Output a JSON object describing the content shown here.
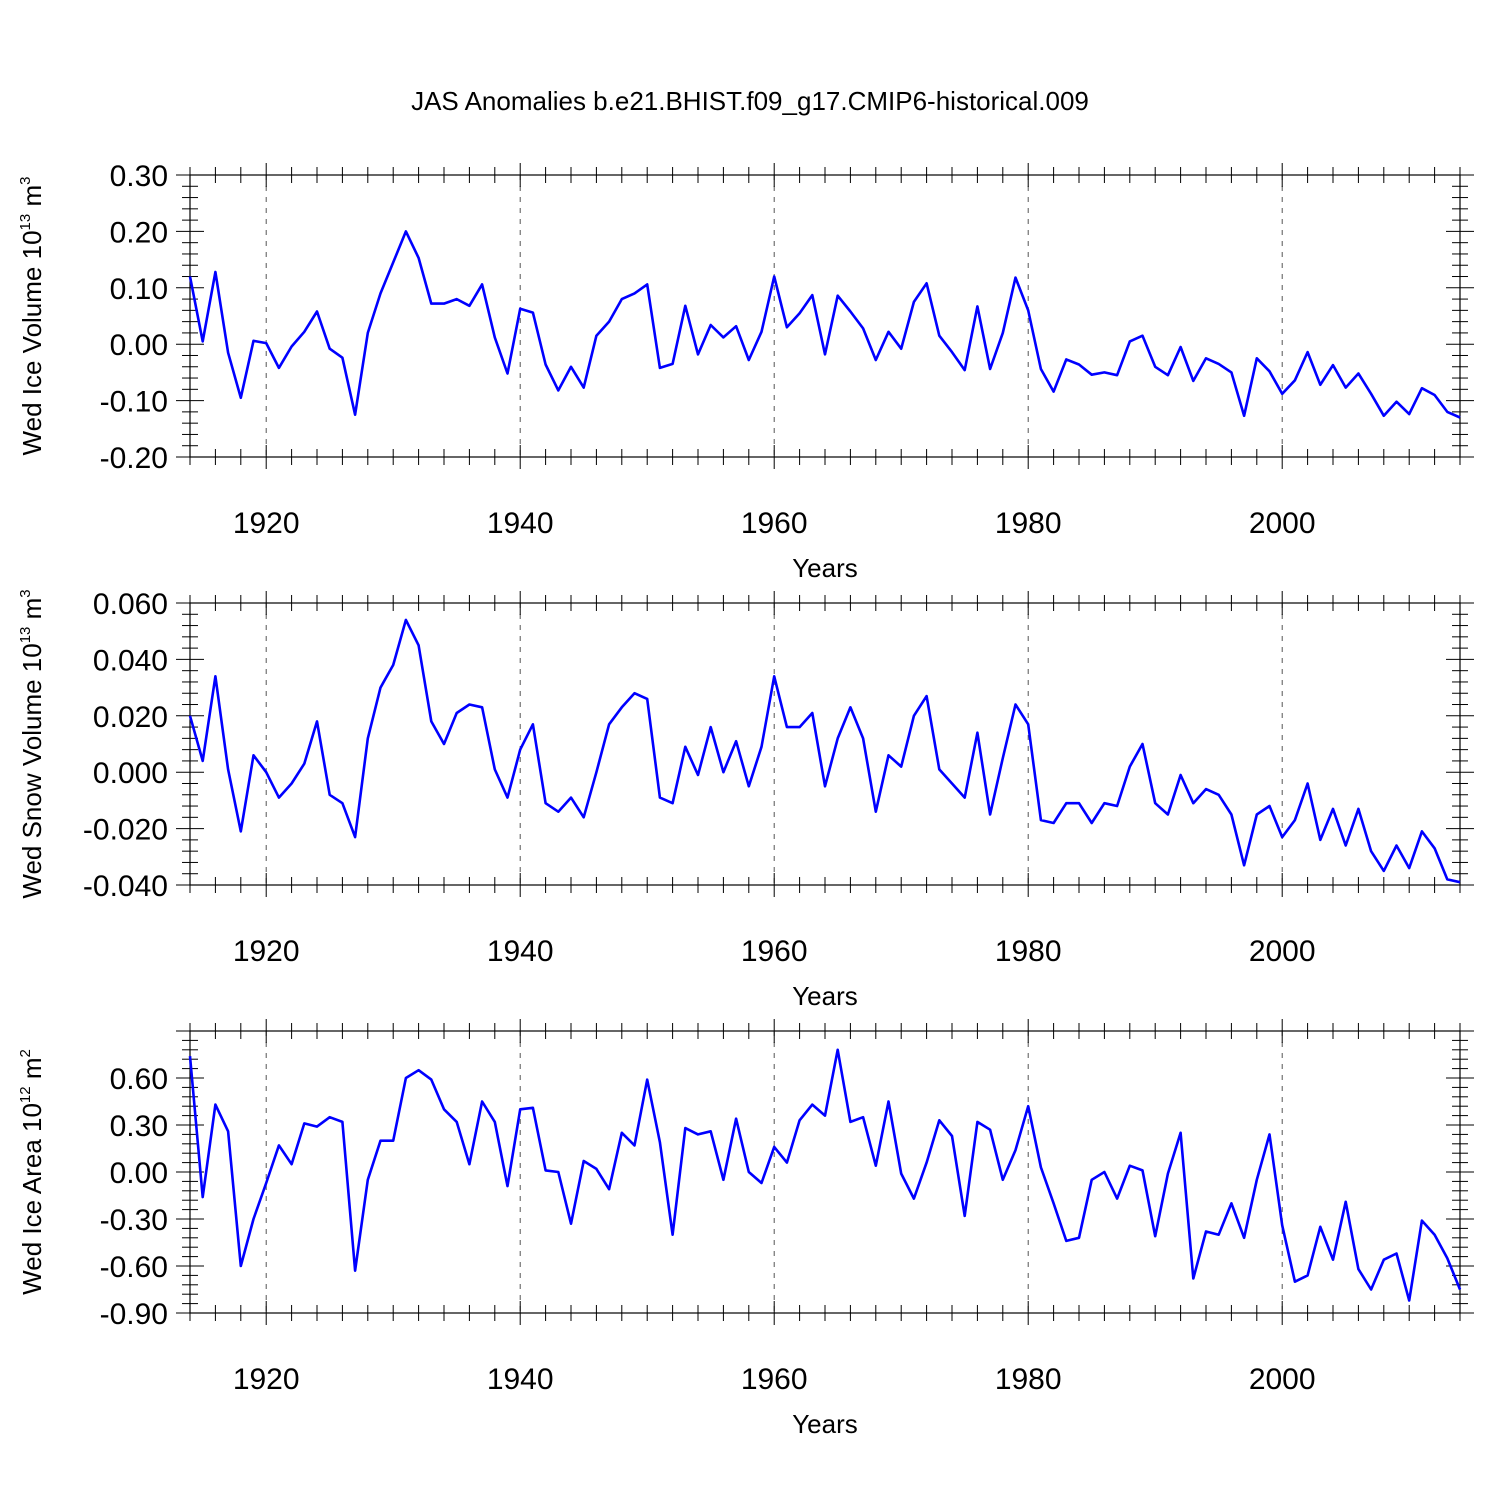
{
  "figure_title": "JAS Anomalies b.e21.BHIST.f09_g17.CMIP6-historical.009",
  "colors": {
    "series": "#0000ff",
    "axes": "#000000",
    "grid": "#555555"
  },
  "chart_data": [
    {
      "type": "line",
      "title": "JAS Anomalies b.e21.BHIST.f09_g17.CMIP6-historical.009",
      "ylabel": {
        "text": "Wed Ice Volume 10",
        "exp": "13",
        "unit": " m",
        "unit_exp": "3"
      },
      "xlabel": "Years",
      "xlim": [
        1914,
        2014
      ],
      "ylim": [
        -0.2,
        0.3
      ],
      "xticks": [
        1920,
        1940,
        1960,
        1980,
        2000
      ],
      "xtick_labels": [
        "1920",
        "1940",
        "1960",
        "1980",
        "2000"
      ],
      "yticks": [
        -0.2,
        -0.1,
        0.0,
        0.1,
        0.2,
        0.3
      ],
      "ytick_labels": [
        "-0.20",
        "-0.10",
        "0.00",
        "0.10",
        "0.20",
        "0.30"
      ],
      "grid": "dashed vertical at major x ticks",
      "x_start": 1914,
      "values": [
        0.12,
        0.005,
        0.128,
        -0.015,
        -0.095,
        0.006,
        0.002,
        -0.042,
        -0.004,
        0.022,
        0.058,
        -0.008,
        -0.024,
        -0.125,
        0.02,
        0.09,
        0.145,
        0.2,
        0.153,
        0.072,
        0.072,
        0.08,
        0.068,
        0.106,
        0.012,
        -0.052,
        0.063,
        0.056,
        -0.036,
        -0.082,
        -0.04,
        -0.077,
        0.015,
        0.04,
        0.08,
        0.09,
        0.106,
        -0.042,
        -0.035,
        0.068,
        -0.018,
        0.034,
        0.012,
        0.032,
        -0.028,
        0.022,
        0.12,
        0.03,
        0.055,
        0.087,
        -0.018,
        0.086,
        0.058,
        0.028,
        -0.028,
        0.022,
        -0.008,
        0.075,
        0.108,
        0.015,
        -0.014,
        -0.046,
        0.067,
        -0.044,
        0.02,
        0.118,
        0.06,
        -0.044,
        -0.084,
        -0.027,
        -0.036,
        -0.054,
        -0.05,
        -0.055,
        0.005,
        0.015,
        -0.04,
        -0.055,
        -0.005,
        -0.065,
        -0.025,
        -0.035,
        -0.05,
        -0.127,
        -0.025,
        -0.048,
        -0.088,
        -0.064,
        -0.014,
        -0.072,
        -0.037,
        -0.077,
        -0.052,
        -0.088,
        -0.127,
        -0.102,
        -0.124,
        -0.078,
        -0.09,
        -0.12,
        -0.13
      ]
    },
    {
      "type": "line",
      "ylabel": {
        "text": "Wed Snow Volume 10",
        "exp": "13",
        "unit": " m",
        "unit_exp": "3"
      },
      "xlabel": "Years",
      "xlim": [
        1914,
        2014
      ],
      "ylim": [
        -0.04,
        0.06
      ],
      "xticks": [
        1920,
        1940,
        1960,
        1980,
        2000
      ],
      "xtick_labels": [
        "1920",
        "1940",
        "1960",
        "1980",
        "2000"
      ],
      "yticks": [
        -0.04,
        -0.02,
        0.0,
        0.02,
        0.04,
        0.06
      ],
      "ytick_labels": [
        "-0.040",
        "-0.020",
        "0.000",
        "0.020",
        "0.040",
        "0.060"
      ],
      "grid": "dashed vertical at major x ticks",
      "x_start": 1914,
      "values": [
        0.02,
        0.004,
        0.034,
        0.001,
        -0.021,
        0.006,
        0.0,
        -0.009,
        -0.004,
        0.003,
        0.018,
        -0.008,
        -0.011,
        -0.023,
        0.012,
        0.03,
        0.038,
        0.054,
        0.045,
        0.018,
        0.01,
        0.021,
        0.024,
        0.023,
        0.001,
        -0.009,
        0.008,
        0.017,
        -0.011,
        -0.014,
        -0.009,
        -0.016,
        0.0,
        0.017,
        0.023,
        0.028,
        0.026,
        -0.009,
        -0.011,
        0.009,
        -0.001,
        0.016,
        0.0,
        0.011,
        -0.005,
        0.009,
        0.034,
        0.016,
        0.016,
        0.021,
        -0.005,
        0.012,
        0.023,
        0.012,
        -0.014,
        0.006,
        0.002,
        0.02,
        0.027,
        0.001,
        -0.004,
        -0.009,
        0.014,
        -0.015,
        0.005,
        0.024,
        0.017,
        -0.017,
        -0.018,
        -0.011,
        -0.011,
        -0.018,
        -0.011,
        -0.012,
        0.002,
        0.01,
        -0.011,
        -0.015,
        -0.001,
        -0.011,
        -0.006,
        -0.008,
        -0.015,
        -0.033,
        -0.015,
        -0.012,
        -0.023,
        -0.017,
        -0.004,
        -0.024,
        -0.013,
        -0.026,
        -0.013,
        -0.028,
        -0.035,
        -0.026,
        -0.034,
        -0.021,
        -0.027,
        -0.038,
        -0.039
      ]
    },
    {
      "type": "line",
      "ylabel": {
        "text": "Wed Ice Area 10",
        "exp": "12",
        "unit": " m",
        "unit_exp": "2"
      },
      "xlabel": "Years",
      "xlim": [
        1914,
        2014
      ],
      "ylim": [
        -0.9,
        0.9
      ],
      "xticks": [
        1920,
        1940,
        1960,
        1980,
        2000
      ],
      "xtick_labels": [
        "1920",
        "1940",
        "1960",
        "1980",
        "2000"
      ],
      "yticks": [
        -0.9,
        -0.6,
        -0.3,
        0.0,
        0.3,
        0.6
      ],
      "ytick_labels": [
        "-0.90",
        "-0.60",
        "-0.30",
        "0.00",
        "0.30",
        "0.60"
      ],
      "grid": "dashed vertical at major x ticks",
      "x_start": 1914,
      "values": [
        0.74,
        -0.16,
        0.43,
        0.26,
        -0.6,
        -0.3,
        -0.07,
        0.17,
        0.05,
        0.31,
        0.29,
        0.35,
        0.32,
        -0.63,
        -0.05,
        0.2,
        0.2,
        0.6,
        0.65,
        0.59,
        0.4,
        0.32,
        0.05,
        0.45,
        0.32,
        -0.09,
        0.4,
        0.41,
        0.01,
        0.0,
        -0.33,
        0.07,
        0.02,
        -0.11,
        0.25,
        0.17,
        0.59,
        0.19,
        -0.4,
        0.28,
        0.24,
        0.26,
        -0.05,
        0.34,
        0.0,
        -0.07,
        0.16,
        0.06,
        0.33,
        0.43,
        0.36,
        0.78,
        0.32,
        0.35,
        0.04,
        0.45,
        -0.01,
        -0.17,
        0.06,
        0.33,
        0.23,
        -0.28,
        0.32,
        0.27,
        -0.05,
        0.14,
        0.42,
        0.03,
        -0.2,
        -0.44,
        -0.42,
        -0.05,
        0.0,
        -0.17,
        0.04,
        0.01,
        -0.41,
        -0.01,
        0.25,
        -0.68,
        -0.38,
        -0.4,
        -0.2,
        -0.42,
        -0.05,
        0.24,
        -0.34,
        -0.7,
        -0.66,
        -0.35,
        -0.56,
        -0.19,
        -0.62,
        -0.75,
        -0.56,
        -0.52,
        -0.82,
        -0.31,
        -0.4,
        -0.55,
        -0.75
      ]
    }
  ]
}
